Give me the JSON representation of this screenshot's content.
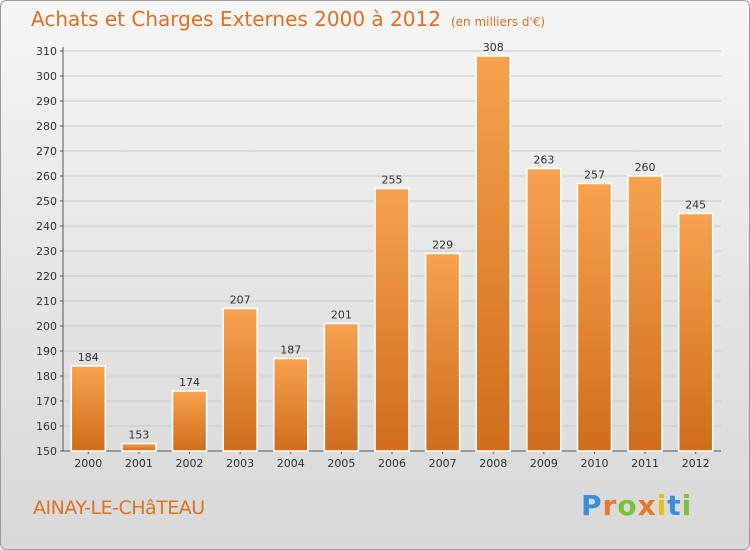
{
  "chart_data": {
    "type": "bar",
    "title": "Achats et Charges Externes 2000 à 2012",
    "subtitle": "(en milliers d'€)",
    "categories": [
      "2000",
      "2001",
      "2002",
      "2003",
      "2004",
      "2005",
      "2006",
      "2007",
      "2008",
      "2009",
      "2010",
      "2011",
      "2012"
    ],
    "values": [
      184,
      153,
      174,
      207,
      187,
      201,
      255,
      229,
      308,
      263,
      257,
      260,
      245
    ],
    "xlabel": "",
    "ylabel": "",
    "ylim": [
      150,
      310
    ],
    "yticks": [
      150,
      160,
      170,
      180,
      190,
      200,
      210,
      220,
      230,
      240,
      250,
      260,
      270,
      280,
      290,
      300,
      310
    ],
    "grid": true,
    "legend": "none",
    "bar_color_light": "#f7a24e",
    "bar_color_dark": "#cf6d1c"
  },
  "footer": {
    "place": "AINAY-LE-CHâTEAU",
    "brand_letters": [
      "P",
      "r",
      "o",
      "x",
      "i",
      "t",
      "i"
    ],
    "brand_colors": [
      "#3a8fd6",
      "#e8762c",
      "#7cbf3a",
      "#e8762c",
      "#e0c21a",
      "#3a8fd6",
      "#7cbf3a"
    ]
  }
}
